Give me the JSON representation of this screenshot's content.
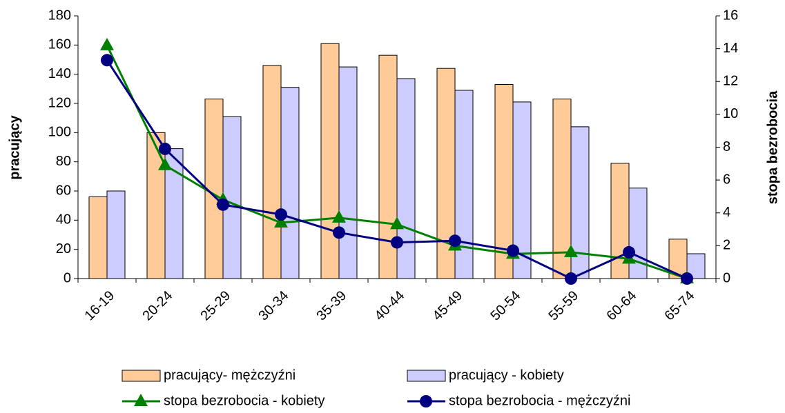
{
  "chart_data": {
    "type": "bar-line",
    "y_label": "pracujący",
    "y2_label": "stopa bezrobocia",
    "categories": [
      "16-19",
      "20-24",
      "25-29",
      "30-34",
      "35-39",
      "40-44",
      "45-49",
      "50-54",
      "55-59",
      "60-64",
      "65-74"
    ],
    "series": [
      {
        "name": "pracujący- mężczyźni",
        "kind": "bar",
        "color": "#FFCC99",
        "values": [
          56,
          100,
          123,
          146,
          161,
          153,
          144,
          133,
          123,
          79,
          27
        ]
      },
      {
        "name": "pracujący - kobiety",
        "kind": "bar",
        "color": "#CCCCFF",
        "values": [
          60,
          89,
          111,
          131,
          145,
          137,
          129,
          121,
          104,
          62,
          17
        ]
      },
      {
        "name": "stopa bezrobocia - kobiety",
        "kind": "line",
        "marker": "triangle",
        "axis": "y2",
        "color": "#008000",
        "values": [
          14.2,
          6.9,
          4.8,
          3.4,
          3.7,
          3.3,
          2.0,
          1.5,
          1.6,
          1.2,
          0
        ]
      },
      {
        "name": "stopa bezrobocia - mężczyźni",
        "kind": "line",
        "marker": "circle",
        "axis": "y2",
        "color": "#000080",
        "values": [
          13.3,
          7.9,
          4.5,
          3.9,
          2.8,
          2.2,
          2.3,
          1.7,
          0,
          1.6,
          0
        ]
      }
    ],
    "ylim": [
      0,
      180
    ],
    "yticks": [
      0,
      20,
      40,
      60,
      80,
      100,
      120,
      140,
      160,
      180
    ],
    "y2lim": [
      0,
      16
    ],
    "y2ticks": [
      0,
      2,
      4,
      6,
      8,
      10,
      12,
      14,
      16
    ]
  }
}
